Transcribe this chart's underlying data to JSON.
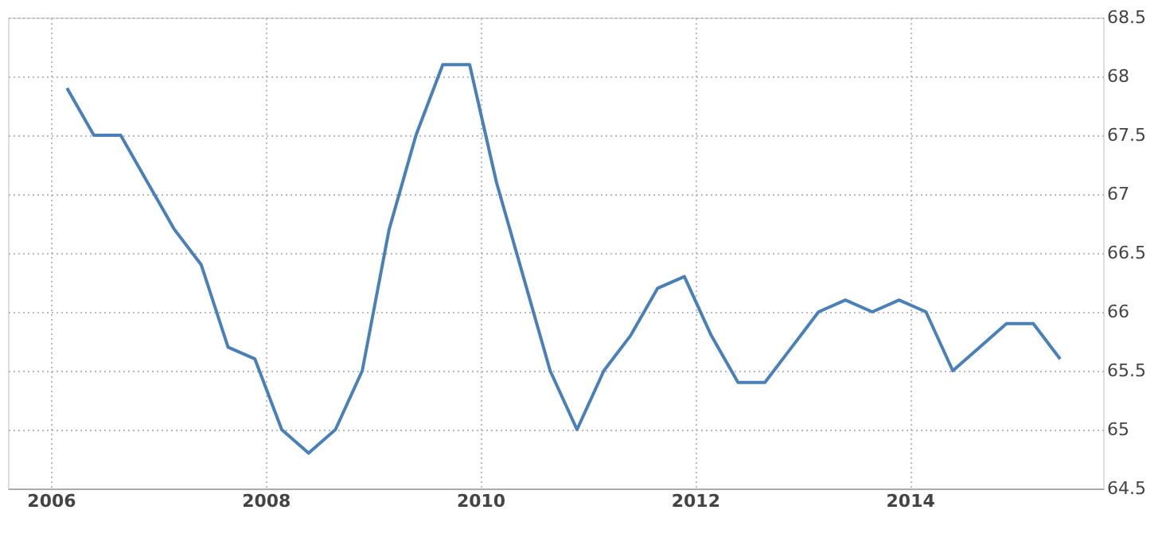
{
  "chart_data": {
    "type": "line",
    "x": [
      2006.15,
      2006.4,
      2006.65,
      2006.9,
      2007.15,
      2007.4,
      2007.65,
      2007.9,
      2008.15,
      2008.4,
      2008.65,
      2008.9,
      2009.15,
      2009.4,
      2009.65,
      2009.9,
      2010.15,
      2010.4,
      2010.65,
      2010.9,
      2011.15,
      2011.4,
      2011.65,
      2011.9,
      2012.15,
      2012.4,
      2012.65,
      2012.9,
      2013.15,
      2013.4,
      2013.65,
      2013.9,
      2014.15,
      2014.4,
      2014.65,
      2014.9,
      2015.15,
      2015.4
    ],
    "series": [
      {
        "color": "#4a80b8",
        "values": [
          67.9,
          67.5,
          67.5,
          67.1,
          66.7,
          66.4,
          65.7,
          65.6,
          65.0,
          64.8,
          65.0,
          65.5,
          66.7,
          67.5,
          68.1,
          68.1,
          67.1,
          66.3,
          65.5,
          65.0,
          65.5,
          65.8,
          66.2,
          66.3,
          65.8,
          65.4,
          65.4,
          65.7,
          66.0,
          66.1,
          66.0,
          66.1,
          66.0,
          65.5,
          65.7,
          65.9,
          65.9,
          65.6
        ]
      }
    ],
    "xlim": [
      2005.6,
      2015.8
    ],
    "xticks": [
      2006,
      2008,
      2010,
      2012,
      2014
    ],
    "ylim": [
      64.5,
      68.5
    ],
    "yticks": [
      64.5,
      65,
      65.5,
      66,
      66.5,
      67,
      67.5,
      68,
      68.5
    ],
    "grid": true,
    "marker": "none",
    "line_style": "solid"
  }
}
